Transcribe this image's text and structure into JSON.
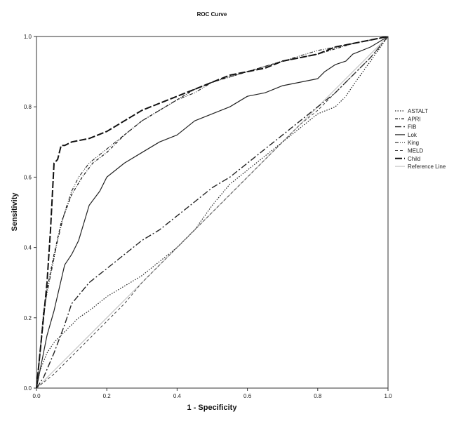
{
  "chart_data": {
    "type": "line",
    "title": "ROC Curve",
    "xlabel": "1 - Specificity",
    "ylabel": "Sensitivity",
    "xlim": [
      0,
      1
    ],
    "ylim": [
      0,
      1
    ],
    "x_ticks": [
      "0.0",
      "0.2",
      "0.4",
      "0.6",
      "0.8",
      "1.0"
    ],
    "y_ticks": [
      "0.0",
      "0.2",
      "0.4",
      "0.6",
      "0.8",
      "1.0"
    ],
    "grid": false,
    "legend_position": "right",
    "series": [
      {
        "name": "ASTALT",
        "style": "dotted",
        "x": [
          0,
          0.01,
          0.03,
          0.05,
          0.08,
          0.1,
          0.12,
          0.15,
          0.2,
          0.3,
          0.4,
          0.45,
          0.5,
          0.55,
          0.6,
          0.65,
          0.7,
          0.75,
          0.8,
          0.85,
          0.88,
          0.9,
          0.95,
          1.0
        ],
        "y": [
          0,
          0.05,
          0.1,
          0.13,
          0.16,
          0.18,
          0.2,
          0.22,
          0.26,
          0.32,
          0.4,
          0.45,
          0.52,
          0.58,
          0.62,
          0.66,
          0.7,
          0.74,
          0.78,
          0.8,
          0.83,
          0.86,
          0.93,
          1.0
        ]
      },
      {
        "name": "APRI",
        "style": "dash-dot",
        "x": [
          0,
          0.01,
          0.02,
          0.03,
          0.05,
          0.07,
          0.1,
          0.13,
          0.16,
          0.2,
          0.25,
          0.3,
          0.35,
          0.4,
          0.45,
          0.5,
          0.6,
          0.7,
          0.8,
          0.9,
          1.0
        ],
        "y": [
          0,
          0.1,
          0.2,
          0.28,
          0.38,
          0.47,
          0.55,
          0.6,
          0.64,
          0.67,
          0.72,
          0.76,
          0.79,
          0.82,
          0.85,
          0.87,
          0.9,
          0.93,
          0.95,
          0.98,
          1.0
        ]
      },
      {
        "name": "FIB",
        "style": "long-dash-dot",
        "x": [
          0,
          0.02,
          0.05,
          0.08,
          0.1,
          0.15,
          0.2,
          0.25,
          0.3,
          0.35,
          0.4,
          0.45,
          0.5,
          0.55,
          0.6,
          0.65,
          0.7,
          0.75,
          0.8,
          0.85,
          0.9,
          0.95,
          1.0
        ],
        "y": [
          0,
          0.03,
          0.1,
          0.18,
          0.24,
          0.3,
          0.34,
          0.38,
          0.42,
          0.45,
          0.49,
          0.53,
          0.57,
          0.6,
          0.64,
          0.68,
          0.72,
          0.76,
          0.8,
          0.84,
          0.89,
          0.94,
          1.0
        ]
      },
      {
        "name": "Lok",
        "style": "solid",
        "x": [
          0,
          0.01,
          0.02,
          0.03,
          0.05,
          0.08,
          0.1,
          0.12,
          0.15,
          0.18,
          0.2,
          0.25,
          0.3,
          0.35,
          0.4,
          0.45,
          0.5,
          0.55,
          0.6,
          0.65,
          0.7,
          0.75,
          0.8,
          0.82,
          0.85,
          0.88,
          0.9,
          0.95,
          1.0
        ],
        "y": [
          0,
          0.05,
          0.1,
          0.15,
          0.22,
          0.35,
          0.38,
          0.42,
          0.52,
          0.56,
          0.6,
          0.64,
          0.67,
          0.7,
          0.72,
          0.76,
          0.78,
          0.8,
          0.83,
          0.84,
          0.86,
          0.87,
          0.88,
          0.9,
          0.92,
          0.93,
          0.95,
          0.97,
          1.0
        ]
      },
      {
        "name": "King",
        "style": "dash-dot-dot",
        "x": [
          0,
          0.01,
          0.02,
          0.04,
          0.06,
          0.08,
          0.1,
          0.12,
          0.15,
          0.2,
          0.25,
          0.3,
          0.35,
          0.4,
          0.45,
          0.5,
          0.6,
          0.7,
          0.8,
          0.9,
          1.0
        ],
        "y": [
          0,
          0.1,
          0.22,
          0.32,
          0.42,
          0.5,
          0.56,
          0.6,
          0.64,
          0.68,
          0.72,
          0.76,
          0.79,
          0.82,
          0.84,
          0.87,
          0.9,
          0.93,
          0.96,
          0.98,
          1.0
        ]
      },
      {
        "name": "MELD",
        "style": "dashed",
        "x": [
          0,
          0.05,
          0.1,
          0.15,
          0.2,
          0.25,
          0.3,
          0.35,
          0.4,
          0.45,
          0.5,
          0.55,
          0.6,
          0.65,
          0.7,
          0.75,
          0.8,
          0.85,
          0.9,
          0.95,
          1.0
        ],
        "y": [
          0,
          0.04,
          0.09,
          0.14,
          0.19,
          0.24,
          0.3,
          0.35,
          0.4,
          0.45,
          0.5,
          0.55,
          0.6,
          0.65,
          0.7,
          0.75,
          0.79,
          0.84,
          0.89,
          0.94,
          1.0
        ]
      },
      {
        "name": "Child",
        "style": "long-dash",
        "x": [
          0,
          0.01,
          0.02,
          0.03,
          0.04,
          0.05,
          0.06,
          0.07,
          0.08,
          0.1,
          0.15,
          0.2,
          0.25,
          0.3,
          0.35,
          0.4,
          0.45,
          0.5,
          0.55,
          0.6,
          0.65,
          0.7,
          0.75,
          0.8,
          0.85,
          0.9,
          0.95,
          1.0
        ],
        "y": [
          0,
          0.1,
          0.2,
          0.3,
          0.45,
          0.64,
          0.65,
          0.69,
          0.69,
          0.7,
          0.71,
          0.73,
          0.76,
          0.79,
          0.81,
          0.83,
          0.85,
          0.87,
          0.89,
          0.9,
          0.91,
          0.93,
          0.94,
          0.95,
          0.97,
          0.98,
          0.99,
          1.0
        ]
      },
      {
        "name": "Reference Line",
        "style": "reference",
        "x": [
          0,
          1
        ],
        "y": [
          0,
          1
        ]
      }
    ]
  }
}
